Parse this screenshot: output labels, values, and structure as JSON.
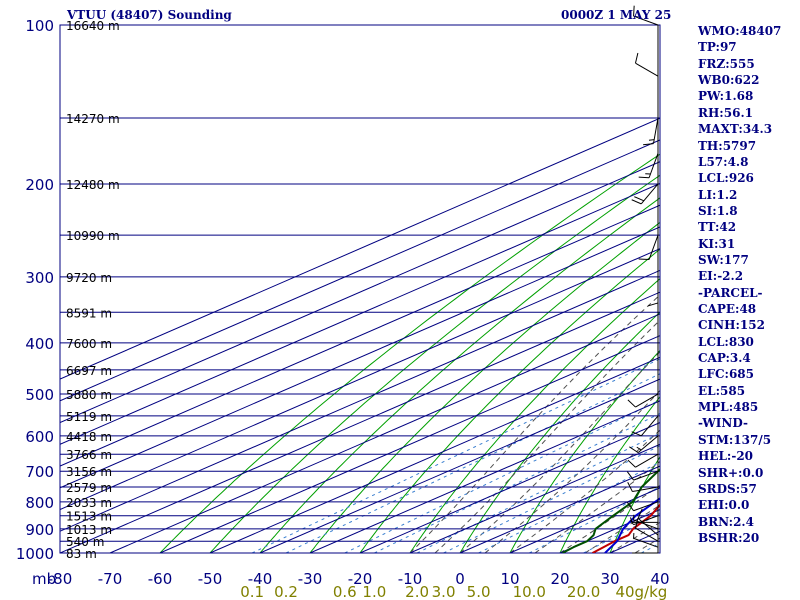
{
  "header": {
    "station_title": "VTUU (48407) Sounding",
    "valid_time": "0000Z  1 MAY 25"
  },
  "indices": [
    "WMO:48407",
    "TP:97",
    "FRZ:555",
    "WB0:622",
    "PW:1.68",
    "RH:56.1",
    "MAXT:34.3",
    "TH:5797",
    "L57:4.8",
    "LCL:926",
    "LI:1.2",
    "SI:1.8",
    "TT:42",
    "KI:31",
    "SW:177",
    "EI:-2.2",
    "-PARCEL-",
    "CAPE:48",
    "CINH:152",
    "LCL:830",
    "CAP:3.4",
    "LFC:685",
    "EL:585",
    "MPL:485",
    "-WIND-",
    "STM:137/5",
    "HEL:-20",
    "SHR+:0.0",
    "SRDS:57",
    "EHI:0.0",
    "BRN:2.4",
    "BSHR:20"
  ],
  "colors": {
    "isobar": "#000080",
    "isotherm": "#000080",
    "dry_adiabat": "#00a000",
    "moist_adiabat": "#505050",
    "mixing_ratio": "#3a7fd0",
    "temperature": "#c00000",
    "dewpoint": "#005000",
    "parcel": "#0000d0",
    "pressure_axis": "#000080",
    "mixing_axis": "#808000",
    "wind": "#000000"
  },
  "chart_data": {
    "type": "line",
    "title": "",
    "x_axis": {
      "unit": "°C",
      "range": [
        -80,
        40
      ],
      "tick_labels": [
        "-80",
        "-70",
        "-60",
        "-50",
        "-40",
        "-30",
        "-20",
        "-10",
        "0",
        "10",
        "20",
        "30",
        "40"
      ],
      "skew": "skewed isotherms",
      "corner_label": "mb"
    },
    "y_axis": {
      "unit": "mb",
      "scale": "log",
      "range": [
        1000,
        100
      ],
      "tick_labels": [
        "100",
        "200",
        "300",
        "400",
        "500",
        "600",
        "700",
        "800",
        "900",
        "1000"
      ]
    },
    "height_labels": [
      {
        "p": 100,
        "text": "16640 m"
      },
      {
        "p": 150,
        "text": "14270 m"
      },
      {
        "p": 200,
        "text": "12480 m"
      },
      {
        "p": 250,
        "text": "10990 m"
      },
      {
        "p": 300,
        "text": "9720 m"
      },
      {
        "p": 350,
        "text": "8591 m"
      },
      {
        "p": 400,
        "text": "7600 m"
      },
      {
        "p": 450,
        "text": "6697 m"
      },
      {
        "p": 500,
        "text": "5880 m"
      },
      {
        "p": 550,
        "text": "5119 m"
      },
      {
        "p": 600,
        "text": "4418 m"
      },
      {
        "p": 650,
        "text": "3766 m"
      },
      {
        "p": 700,
        "text": "3156 m"
      },
      {
        "p": 750,
        "text": "2579 m"
      },
      {
        "p": 800,
        "text": "2033 m"
      },
      {
        "p": 850,
        "text": "1513 m"
      },
      {
        "p": 900,
        "text": "1013 m"
      },
      {
        "p": 950,
        "text": "540 m"
      },
      {
        "p": 1000,
        "text": "83 m"
      }
    ],
    "mixing_ratio_labels": [
      {
        "w": 0.1,
        "text": "0.1"
      },
      {
        "w": 0.2,
        "text": "0.2"
      },
      {
        "w": 0.6,
        "text": "0.6"
      },
      {
        "w": 1.0,
        "text": "1.0"
      },
      {
        "w": 2.0,
        "text": "2.0"
      },
      {
        "w": 3.0,
        "text": "3.0"
      },
      {
        "w": 5.0,
        "text": "5.0"
      },
      {
        "w": 10.0,
        "text": "10.0"
      },
      {
        "w": 20.0,
        "text": "20.0"
      },
      {
        "w": 40.0,
        "text": "40g/kg"
      }
    ],
    "dry_adiabats_C_at_1000": [
      -60,
      -50,
      -40,
      -30,
      -20,
      -10,
      0,
      10,
      20,
      30,
      40,
      50,
      60,
      70,
      80,
      90,
      100,
      110,
      120,
      130,
      140,
      150,
      160
    ],
    "moist_adiabats_C_at_1000": [
      -10,
      -5,
      0,
      5,
      10,
      15,
      20,
      25,
      30,
      35,
      40
    ],
    "series": [
      {
        "name": "Temperature",
        "points": [
          [
            1000,
            26.5
          ],
          [
            975,
            26
          ],
          [
            950,
            25.5
          ],
          [
            925,
            25.5
          ],
          [
            900,
            23.5
          ],
          [
            850,
            21
          ],
          [
            800,
            17
          ],
          [
            750,
            12.5
          ],
          [
            700,
            10
          ],
          [
            650,
            5.5
          ],
          [
            600,
            1
          ],
          [
            550,
            -4.5
          ],
          [
            500,
            -10
          ],
          [
            450,
            -16
          ],
          [
            400,
            -23
          ],
          [
            350,
            -30
          ],
          [
            300,
            -38
          ],
          [
            250,
            -47.5
          ],
          [
            200,
            -56
          ],
          [
            150,
            -67
          ],
          [
            100,
            -80
          ]
        ]
      },
      {
        "name": "Dewpoint",
        "points": [
          [
            1000,
            20.5
          ],
          [
            975,
            20
          ],
          [
            950,
            20
          ],
          [
            925,
            18.5
          ],
          [
            900,
            16
          ],
          [
            850,
            13.5
          ],
          [
            800,
            11
          ],
          [
            750,
            6
          ],
          [
            700,
            2
          ],
          [
            650,
            -2
          ],
          [
            600,
            -6
          ],
          [
            590,
            -14
          ],
          [
            575,
            -7
          ],
          [
            500,
            -20
          ],
          [
            485,
            -24
          ],
          [
            470,
            -12
          ],
          [
            450,
            -20
          ],
          [
            400,
            -42
          ],
          [
            385,
            -39
          ],
          [
            370,
            -29
          ],
          [
            350,
            -40
          ],
          [
            330,
            -48
          ],
          [
            300,
            -50
          ],
          [
            290,
            -53
          ],
          [
            250,
            -57
          ],
          [
            220,
            -62
          ],
          [
            150,
            -74
          ],
          [
            130,
            -81
          ]
        ]
      },
      {
        "name": "Parcel",
        "points": [
          [
            1000,
            29
          ],
          [
            950,
            26
          ],
          [
            900,
            21.5
          ],
          [
            850,
            18
          ],
          [
            830,
            17
          ],
          [
            800,
            15.5
          ],
          [
            750,
            13
          ],
          [
            700,
            10
          ],
          [
            650,
            6
          ],
          [
            600,
            1.5
          ],
          [
            550,
            -4
          ],
          [
            500,
            -11
          ],
          [
            450,
            -17
          ],
          [
            400,
            -24
          ],
          [
            350,
            -31.5
          ],
          [
            300,
            -40
          ],
          [
            250,
            -50
          ],
          [
            200,
            -61
          ],
          [
            150,
            -73
          ],
          [
            120,
            -82
          ]
        ]
      }
    ],
    "wind_barbs": [
      {
        "p": 1000,
        "dir": 270,
        "kt": 0
      },
      {
        "p": 975,
        "dir": 290,
        "kt": 5
      },
      {
        "p": 950,
        "dir": 300,
        "kt": 10
      },
      {
        "p": 925,
        "dir": 310,
        "kt": 10
      },
      {
        "p": 900,
        "dir": 290,
        "kt": 5
      },
      {
        "p": 875,
        "dir": 270,
        "kt": 5
      },
      {
        "p": 850,
        "dir": 250,
        "kt": 5
      },
      {
        "p": 800,
        "dir": 250,
        "kt": 10
      },
      {
        "p": 750,
        "dir": 260,
        "kt": 10
      },
      {
        "p": 700,
        "dir": 250,
        "kt": 10
      },
      {
        "p": 650,
        "dir": 240,
        "kt": 10
      },
      {
        "p": 600,
        "dir": 230,
        "kt": 15
      },
      {
        "p": 550,
        "dir": 220,
        "kt": 10
      },
      {
        "p": 500,
        "dir": 240,
        "kt": 10
      },
      {
        "p": 300,
        "dir": 180,
        "kt": 10
      },
      {
        "p": 250,
        "dir": 200,
        "kt": 10
      },
      {
        "p": 200,
        "dir": 220,
        "kt": 20
      },
      {
        "p": 175,
        "dir": 200,
        "kt": 15
      },
      {
        "p": 150,
        "dir": 190,
        "kt": 15
      },
      {
        "p": 125,
        "dir": 300,
        "kt": 10
      },
      {
        "p": 100,
        "dir": 290,
        "kt": 10
      }
    ]
  }
}
